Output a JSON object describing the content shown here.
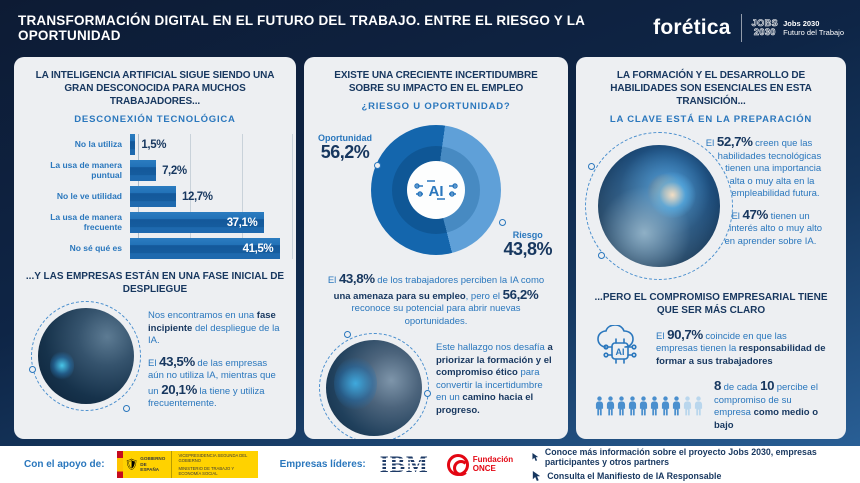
{
  "colors": {
    "accent_dark": "#17375f",
    "accent_blue": "#2a77bd",
    "bar_blue": "#1d6bb0",
    "donut_dark": "#1466ad",
    "donut_light": "#5fa0d8",
    "donut_dark_inner": "#0f5796",
    "donut_light_inner": "#478ac2",
    "card_bg": "#edeff2",
    "people_filled": "#4a8fce",
    "people_empty": "#b9d6ed",
    "once_red": "#e30613",
    "gov_yellow": "#ffd200"
  },
  "header": {
    "title": "TRANSFORMACIÓN DIGITAL EN EL FUTURO DEL TRABAJO. ENTRE EL RIESGO Y LA OPORTUNIDAD",
    "brand": "forética",
    "badge_mark_top": "JOBS",
    "badge_mark_bottom": "2030",
    "badge_line1": "Jobs 2030",
    "badge_line2": "Futuro del Trabajo"
  },
  "col1": {
    "title": "LA INTELIGENCIA ARTIFICIAL SIGUE SIENDO UNA GRAN DESCONOCIDA PARA MUCHOS TRABAJADORES...",
    "kicker": "DESCONEXIÓN TECNOLÓGICA",
    "subtitle2": "...Y LAS EMPRESAS ESTÁN EN UNA FASE INICIAL DE DESPLIEGUE",
    "para1": [
      {
        "s": "n",
        "t": "Nos encontramos en una "
      },
      {
        "s": "b",
        "t": "fase incipiente"
      },
      {
        "s": "n",
        "t": " del despliegue de la IA."
      }
    ],
    "para2": [
      {
        "s": "n",
        "t": "El "
      },
      {
        "s": "N",
        "t": "43,5%"
      },
      {
        "s": "n",
        "t": " de las empresas aún no utiliza IA, mientras que un "
      },
      {
        "s": "N",
        "t": "20,1%"
      },
      {
        "s": "n",
        "t": " la tiene y utiliza frecuentemente."
      }
    ]
  },
  "col2": {
    "title": "EXISTE UNA CRECIENTE INCERTIDUMBRE SOBRE SU IMPACTO EN EL EMPLEO",
    "kicker": "¿RIESGO U OPORTUNIDAD?",
    "donut_center": "AI",
    "label_opportunity": "Oportunidad",
    "value_opportunity": "56,2%",
    "label_risk": "Riesgo",
    "value_risk": "43,8%",
    "para1": [
      {
        "s": "n",
        "t": "El "
      },
      {
        "s": "N",
        "t": "43,8%"
      },
      {
        "s": "n",
        "t": " de los trabajadores perciben la IA como "
      },
      {
        "s": "b",
        "t": "una amenaza para su empleo"
      },
      {
        "s": "n",
        "t": ", pero el "
      },
      {
        "s": "N",
        "t": "56,2%"
      },
      {
        "s": "n",
        "t": " reconoce su potencial para abrir nuevas oportunidades."
      }
    ],
    "para2": [
      {
        "s": "n",
        "t": "Este hallazgo nos desafía "
      },
      {
        "s": "b",
        "t": "a priorizar la formación y el compromiso ético"
      },
      {
        "s": "n",
        "t": " para convertir la incertidumbre en un "
      },
      {
        "s": "b",
        "t": "camino hacia el progreso."
      }
    ]
  },
  "col3": {
    "title": "LA FORMACIÓN Y EL DESARROLLO DE HABILIDADES SON ESENCIALES EN ESTA TRANSICIÓN...",
    "kicker": "LA CLAVE ESTÁ EN LA PREPARACIÓN",
    "subtitle2": "...PERO EL COMPROMISO EMPRESARIAL TIENE QUE SER MÁS CLARO",
    "para1": [
      {
        "s": "n",
        "t": "El "
      },
      {
        "s": "N",
        "t": "52,7%"
      },
      {
        "s": "n",
        "t": " creen que las habilidades tecnológicas tienen una importancia alta o muy alta en la empleabilidad futura."
      }
    ],
    "para2": [
      {
        "s": "n",
        "t": "El "
      },
      {
        "s": "N",
        "t": "47%"
      },
      {
        "s": "n",
        "t": " tienen un interés alto o muy alto en aprender sobre IA."
      }
    ],
    "para3": [
      {
        "s": "n",
        "t": "El "
      },
      {
        "s": "N",
        "t": "90,7%"
      },
      {
        "s": "n",
        "t": " coincide en que las empresas tienen la "
      },
      {
        "s": "b",
        "t": "responsabilidad de formar a sus trabajadores"
      }
    ],
    "people": {
      "total": 10,
      "filled": 8
    },
    "para4": [
      {
        "s": "N",
        "t": "8"
      },
      {
        "s": "n",
        "t": " de cada "
      },
      {
        "s": "N",
        "t": "10"
      },
      {
        "s": "n",
        "t": " percibe el compromiso de su empresa "
      },
      {
        "s": "b",
        "t": "como medio o bajo"
      }
    ]
  },
  "footer": {
    "support_label": "Con el apoyo de:",
    "gov": {
      "line1": "GOBIERNO",
      "line2": "DE ESPAÑA",
      "dept1": "VICEPRESIDENCIA SEGUNDA DEL GOBIERNO",
      "dept2": "MINISTERIO DE TRABAJO Y ECONOMÍA SOCIAL"
    },
    "leaders_label": "Empresas líderes:",
    "ibm": "IBM",
    "once_line1": "Fundación",
    "once_line2": "ONCE",
    "links": [
      {
        "label": "Conoce más información sobre el proyecto Jobs 2030, empresas participantes y otros partners"
      },
      {
        "label": "Consulta el Manifiesto de IA Responsable"
      }
    ]
  },
  "chart_data": [
    {
      "type": "bar",
      "title": "DESCONEXIÓN TECNOLÓGICA",
      "orientation": "horizontal",
      "categories": [
        "No la utiliza",
        "La usa de manera puntual",
        "No le ve utilidad",
        "La usa de manera frecuente",
        "No sé qué es"
      ],
      "values": [
        1.5,
        7.2,
        12.7,
        37.1,
        41.5
      ],
      "value_labels": [
        "1,5%",
        "7,2%",
        "12,7%",
        "37,1%",
        "41,5%"
      ],
      "unit": "%",
      "xlim": [
        0,
        43
      ],
      "grid": true,
      "legend": false
    },
    {
      "type": "pie",
      "donut": true,
      "title": "¿RIESGO U OPORTUNIDAD?",
      "labels": [
        "Oportunidad",
        "Riesgo"
      ],
      "values": [
        56.2,
        43.8
      ],
      "value_labels": [
        "56,2%",
        "43,8%"
      ],
      "colors": [
        "#1466ad",
        "#5fa0d8"
      ],
      "colors_inner": [
        "#0f5796",
        "#478ac2"
      ],
      "start_angle_deg": 8,
      "center_icon": "AI",
      "legend": false
    }
  ]
}
